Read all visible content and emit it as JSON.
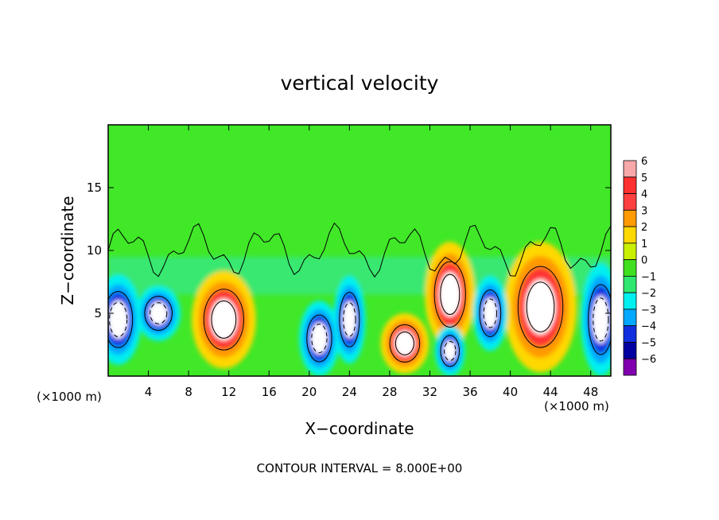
{
  "chart_data": {
    "type": "heatmap",
    "title": "vertical velocity",
    "xlabel": "X−coordinate",
    "ylabel": "Z−coordinate",
    "x_unit_left": "(×1000 m)",
    "x_unit_right": "(×1000 m)",
    "footer": "CONTOUR INTERVAL = 8.000E+00",
    "xlim": [
      0,
      50
    ],
    "ylim": [
      0,
      20
    ],
    "x_ticks": [
      4,
      8,
      12,
      16,
      20,
      24,
      28,
      32,
      36,
      40,
      44,
      48
    ],
    "y_ticks": [
      5,
      10,
      15
    ],
    "colorbar": {
      "levels": [
        6,
        5,
        4,
        3,
        2,
        1,
        0,
        -1,
        -2,
        -3,
        -4,
        -5,
        -6
      ],
      "labels": [
        "6",
        "5",
        "4",
        "3",
        "2",
        "1",
        "0",
        "−1",
        "−2",
        "−3",
        "−4",
        "−5",
        "−6"
      ],
      "colors": [
        "#f8a8a8",
        "#ff3030",
        "#ff4040",
        "#ff9a00",
        "#ffd800",
        "#c8f000",
        "#40e020",
        "#30e870",
        "#00f0f0",
        "#00a8ff",
        "#1030e0",
        "#0000a0",
        "#8000b0"
      ]
    },
    "background_color": "#40e828",
    "features": [
      {
        "kind": "updraft",
        "x": 11.5,
        "z": 4.5,
        "rx": 3.2,
        "rz": 3.9,
        "peak": "above 6"
      },
      {
        "kind": "updraft",
        "x": 29.5,
        "z": 2.6,
        "rx": 2.4,
        "rz": 2.4,
        "peak": "above 6"
      },
      {
        "kind": "updraft",
        "x": 34.0,
        "z": 6.5,
        "rx": 2.5,
        "rz": 4.2,
        "peak": "above 6"
      },
      {
        "kind": "updraft",
        "x": 43.0,
        "z": 5.5,
        "rx": 3.6,
        "rz": 5.2,
        "peak": "above 6"
      },
      {
        "kind": "downdraft",
        "x": 1.0,
        "z": 4.5,
        "rx": 2.3,
        "rz": 3.6,
        "peak": "below -6"
      },
      {
        "kind": "downdraft",
        "x": 5.0,
        "z": 5.0,
        "rx": 2.2,
        "rz": 2.2,
        "peak": "below -6"
      },
      {
        "kind": "downdraft",
        "x": 21.0,
        "z": 3.0,
        "rx": 2.0,
        "rz": 3.0,
        "peak": "below -6"
      },
      {
        "kind": "downdraft",
        "x": 24.0,
        "z": 4.5,
        "rx": 1.6,
        "rz": 3.5,
        "peak": "below -6"
      },
      {
        "kind": "downdraft",
        "x": 34.0,
        "z": 2.0,
        "rx": 1.5,
        "rz": 2.0,
        "peak": "below -6"
      },
      {
        "kind": "downdraft",
        "x": 38.0,
        "z": 5.0,
        "rx": 1.7,
        "rz": 3.0,
        "peak": "-5"
      },
      {
        "kind": "downdraft",
        "x": 49.0,
        "z": 4.5,
        "rx": 2.0,
        "rz": 4.5,
        "peak": "below -6"
      }
    ]
  }
}
